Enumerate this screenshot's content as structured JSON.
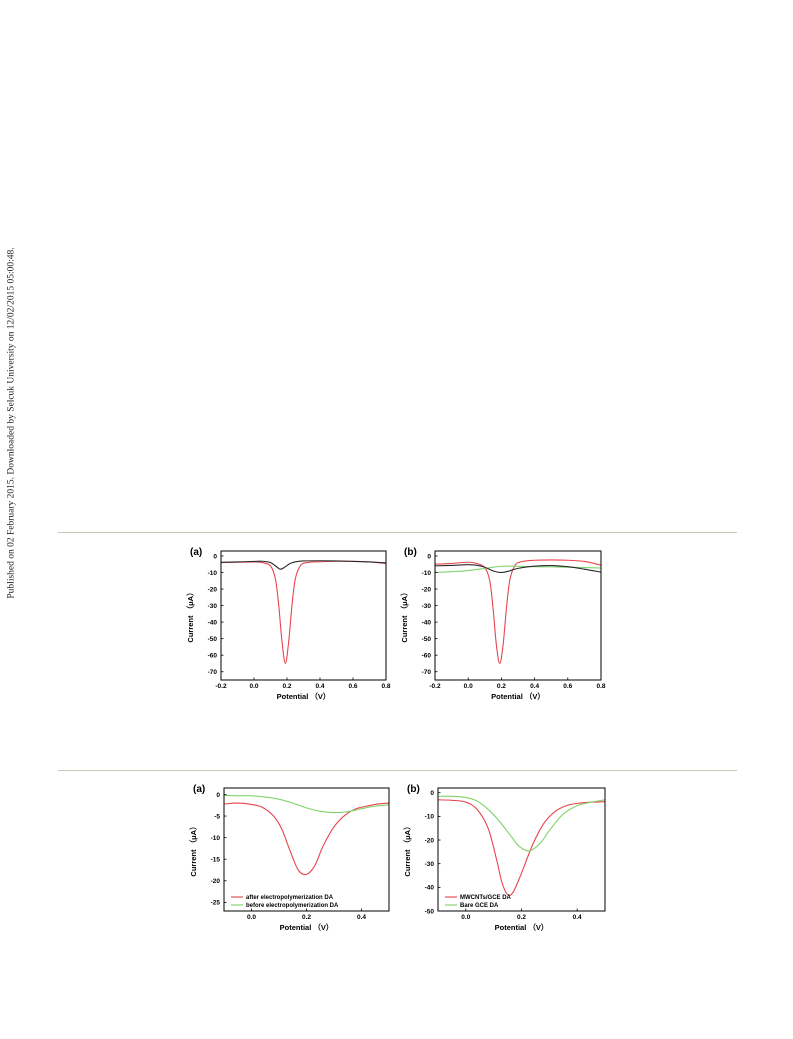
{
  "side_note": "Published on 02 February 2015. Downloaded by Selcuk University on 12/02/2015 05:00:48.",
  "colors": {
    "red": "#e8444d",
    "green": "#7ed36a",
    "black": "#2a2a2a",
    "rule": "#c9c7b3"
  },
  "chart_data": [
    {
      "type": "line",
      "panel_label": "(a)",
      "xlabel": "Potential （V）",
      "ylabel": "Current （μA）",
      "xlim": [
        -0.2,
        0.8
      ],
      "ylim": [
        -75,
        3
      ],
      "xticks": [
        -0.2,
        0.0,
        0.2,
        0.4,
        0.6,
        0.8
      ],
      "xtick_labels": [
        "-0.2",
        "0.0",
        "0.2",
        "0.4",
        "0.6",
        "0.8"
      ],
      "yticks": [
        0,
        -10,
        -20,
        -30,
        -40,
        -50,
        -60,
        -70
      ],
      "ytick_labels": [
        "0",
        "-10",
        "-20",
        "-30",
        "-40",
        "-50",
        "-60",
        "-70"
      ],
      "legend": false,
      "series": [
        {
          "color": "red",
          "x": [
            -0.2,
            -0.1,
            0.0,
            0.05,
            0.1,
            0.13,
            0.15,
            0.17,
            0.19,
            0.21,
            0.23,
            0.25,
            0.28,
            0.32,
            0.4,
            0.5,
            0.6,
            0.7,
            0.8
          ],
          "y": [
            -4,
            -3.8,
            -3.6,
            -4,
            -6,
            -14,
            -30,
            -52,
            -65,
            -52,
            -30,
            -14,
            -6,
            -4,
            -3.5,
            -3.2,
            -3.2,
            -3.6,
            -4.5
          ]
        },
        {
          "color": "black",
          "x": [
            -0.2,
            -0.1,
            0.0,
            0.05,
            0.1,
            0.13,
            0.16,
            0.19,
            0.22,
            0.26,
            0.3,
            0.4,
            0.5,
            0.6,
            0.7,
            0.8
          ],
          "y": [
            -3.8,
            -3.6,
            -3.3,
            -3.2,
            -4,
            -6,
            -8,
            -6.5,
            -4.5,
            -3.4,
            -3,
            -2.9,
            -3,
            -3.3,
            -3.6,
            -4.2
          ]
        }
      ]
    },
    {
      "type": "line",
      "panel_label": "(b)",
      "xlabel": "Potential （V）",
      "ylabel": "Current （μA）",
      "xlim": [
        -0.2,
        0.8
      ],
      "ylim": [
        -75,
        3
      ],
      "xticks": [
        -0.2,
        0.0,
        0.2,
        0.4,
        0.6,
        0.8
      ],
      "xtick_labels": [
        "-0.2",
        "0.0",
        "0.2",
        "0.4",
        "0.6",
        "0.8"
      ],
      "yticks": [
        0,
        -10,
        -20,
        -30,
        -40,
        -50,
        -60,
        -70
      ],
      "ytick_labels": [
        "0",
        "-10",
        "-20",
        "-30",
        "-40",
        "-50",
        "-60",
        "-70"
      ],
      "legend": false,
      "series": [
        {
          "color": "red",
          "x": [
            -0.2,
            -0.1,
            0.0,
            0.05,
            0.1,
            0.13,
            0.15,
            0.17,
            0.19,
            0.21,
            0.23,
            0.25,
            0.28,
            0.32,
            0.4,
            0.5,
            0.6,
            0.7,
            0.8
          ],
          "y": [
            -5,
            -4.5,
            -3.8,
            -4.5,
            -7,
            -15,
            -32,
            -54,
            -65,
            -54,
            -32,
            -15,
            -6,
            -3.5,
            -2.6,
            -2.4,
            -2.6,
            -3.3,
            -5.5
          ]
        },
        {
          "color": "green",
          "x": [
            -0.2,
            -0.1,
            0.0,
            0.1,
            0.15,
            0.2,
            0.25,
            0.3,
            0.4,
            0.5,
            0.6,
            0.7,
            0.8
          ],
          "y": [
            -10,
            -9.5,
            -8.8,
            -7.5,
            -6.8,
            -6.3,
            -6.1,
            -6.3,
            -6.5,
            -6.6,
            -6.8,
            -7,
            -7.3
          ]
        },
        {
          "color": "black",
          "x": [
            -0.2,
            -0.1,
            0.0,
            0.05,
            0.1,
            0.15,
            0.2,
            0.25,
            0.3,
            0.4,
            0.5,
            0.6,
            0.7,
            0.8
          ],
          "y": [
            -6,
            -5.7,
            -5.3,
            -5.6,
            -6.8,
            -9,
            -10,
            -9,
            -7.5,
            -6.2,
            -5.8,
            -6.5,
            -8,
            -9.8
          ]
        }
      ]
    },
    {
      "type": "line",
      "panel_label": "(a)",
      "xlabel": "Potential （V）",
      "ylabel": "Current （μA）",
      "xlim": [
        -0.1,
        0.5
      ],
      "ylim": [
        -27,
        1.5
      ],
      "xticks": [
        0.0,
        0.2,
        0.4
      ],
      "xtick_labels": [
        "0.0",
        "0.2",
        "0.4"
      ],
      "yticks": [
        0,
        -5,
        -10,
        -15,
        -20,
        -25
      ],
      "ytick_labels": [
        "0",
        "-5",
        "-10",
        "-15",
        "-20",
        "-25"
      ],
      "legend": true,
      "series": [
        {
          "name": "after electropolymerization DA",
          "color": "red",
          "x": [
            -0.1,
            -0.05,
            0.0,
            0.04,
            0.08,
            0.11,
            0.14,
            0.17,
            0.2,
            0.23,
            0.26,
            0.3,
            0.34,
            0.38,
            0.42,
            0.46,
            0.5
          ],
          "y": [
            -2.2,
            -2,
            -2.3,
            -3,
            -5,
            -8,
            -13,
            -17.5,
            -18.5,
            -16.5,
            -12,
            -7.5,
            -4.8,
            -3.3,
            -2.7,
            -2.2,
            -2
          ]
        },
        {
          "name": "before electropolymerization DA",
          "color": "green",
          "x": [
            -0.1,
            -0.05,
            0.0,
            0.05,
            0.1,
            0.15,
            0.2,
            0.25,
            0.3,
            0.35,
            0.4,
            0.45,
            0.5
          ],
          "y": [
            -0.2,
            -0.3,
            -0.3,
            -0.6,
            -1.1,
            -2,
            -3.1,
            -3.9,
            -4.2,
            -4,
            -3.3,
            -2.7,
            -2.4
          ]
        }
      ]
    },
    {
      "type": "line",
      "panel_label": "(b)",
      "xlabel": "Potential （V）",
      "ylabel": "Current （μA）",
      "xlim": [
        -0.1,
        0.5
      ],
      "ylim": [
        -50,
        2
      ],
      "xticks": [
        0.0,
        0.2,
        0.4
      ],
      "xtick_labels": [
        "0.0",
        "0.2",
        "0.4"
      ],
      "yticks": [
        0,
        -10,
        -20,
        -30,
        -40,
        -50
      ],
      "ytick_labels": [
        "0",
        "-10",
        "-20",
        "-30",
        "-40",
        "-50"
      ],
      "legend": true,
      "series": [
        {
          "name": "MWCNTs/GCE  DA",
          "color": "red",
          "x": [
            -0.1,
            -0.05,
            0.0,
            0.04,
            0.08,
            0.11,
            0.13,
            0.15,
            0.17,
            0.2,
            0.24,
            0.28,
            0.32,
            0.36,
            0.4,
            0.45,
            0.5
          ],
          "y": [
            -3,
            -3.2,
            -4,
            -7,
            -15,
            -28,
            -38,
            -43,
            -42,
            -34,
            -22,
            -13,
            -8,
            -5.5,
            -4.5,
            -4,
            -3.8
          ]
        },
        {
          "name": "Bare GCE  DA",
          "color": "green",
          "x": [
            -0.1,
            -0.05,
            0.0,
            0.04,
            0.08,
            0.12,
            0.16,
            0.19,
            0.22,
            0.24,
            0.27,
            0.3,
            0.35,
            0.4,
            0.45,
            0.5
          ],
          "y": [
            -1.5,
            -1.5,
            -2,
            -3.5,
            -7,
            -12,
            -18,
            -22.5,
            -24.5,
            -24,
            -21,
            -16,
            -9,
            -5.5,
            -4,
            -3
          ]
        }
      ]
    }
  ]
}
